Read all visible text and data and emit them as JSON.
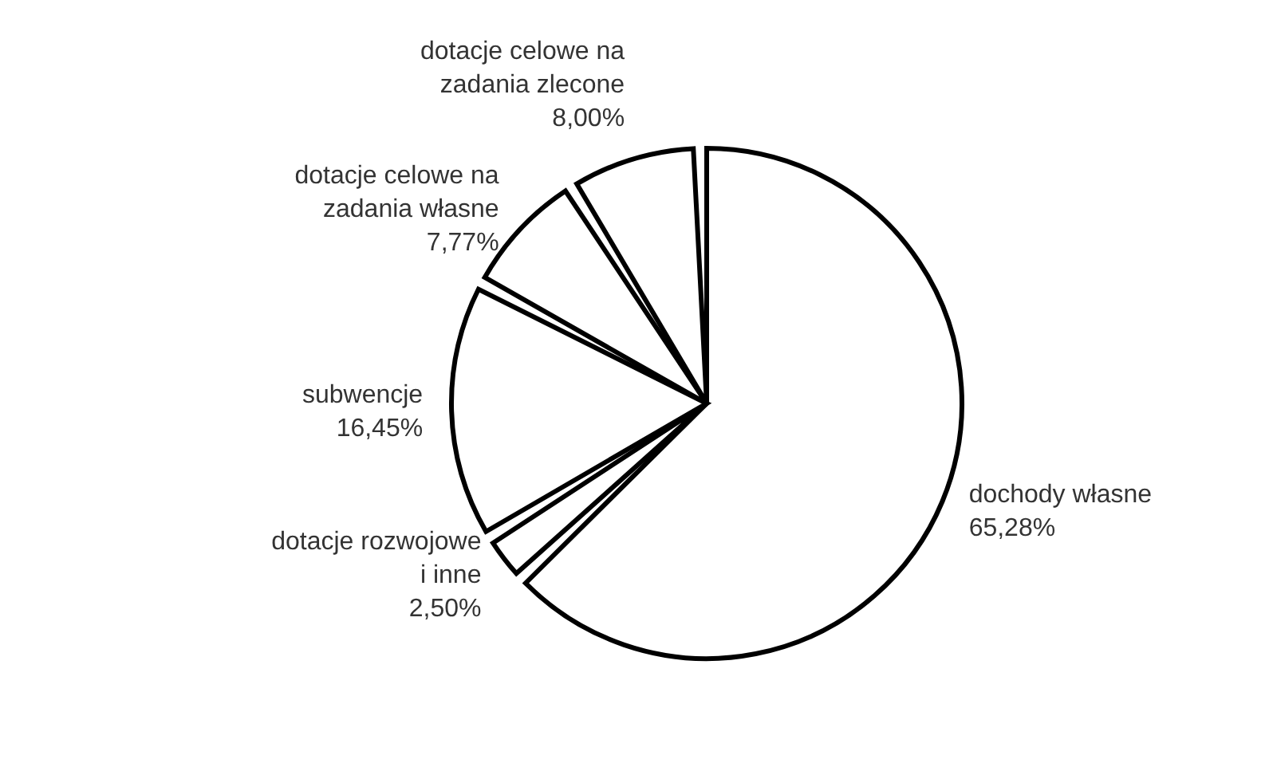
{
  "chart_data": {
    "type": "pie",
    "categories": [
      "dochody własne",
      "dotacje rozwojowe i inne",
      "subwencje",
      "dotacje celowe na zadania własne",
      "dotacje celowe na zadania zlecone"
    ],
    "values": [
      65.28,
      2.5,
      16.45,
      7.77,
      8.0
    ],
    "value_labels": [
      "65,28%",
      "2,50%",
      "16,45%",
      "7,77%",
      "8,00%"
    ],
    "colors": [
      "#ffffff",
      "#ffffff",
      "#ffffff",
      "#ffffff",
      "#ffffff"
    ]
  }
}
